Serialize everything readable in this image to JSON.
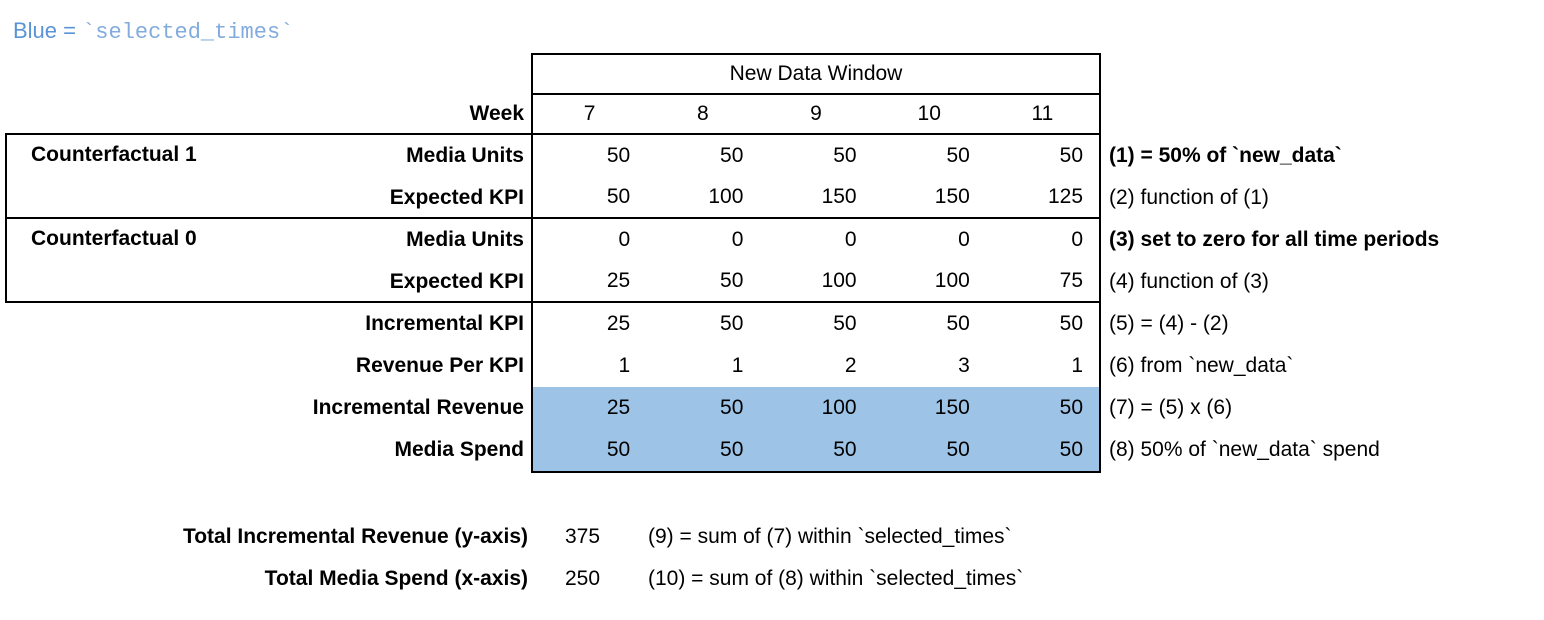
{
  "colors": {
    "highlight_blue": "#9dc3e6",
    "legend_text_blue": "#5b94d6",
    "legend_code_blue": "#82abde"
  },
  "legend": {
    "prefix": "Blue = ",
    "code": "`selected_times`"
  },
  "table": {
    "window_header": "New Data Window",
    "week_label": "Week",
    "weeks": [
      "7",
      "8",
      "9",
      "10",
      "11"
    ],
    "group1_label": "Counterfactual 1",
    "group0_label": "Counterfactual 0",
    "rows": [
      {
        "label": "Media Units",
        "values": [
          "50",
          "50",
          "50",
          "50",
          "50"
        ],
        "note": "(1) = 50% of `new_data`"
      },
      {
        "label": "Expected KPI",
        "values": [
          "50",
          "100",
          "150",
          "150",
          "125"
        ],
        "note": "(2) function of (1)"
      },
      {
        "label": "Media Units",
        "values": [
          "0",
          "0",
          "0",
          "0",
          "0"
        ],
        "note": "(3) set to zero for all time periods"
      },
      {
        "label": "Expected KPI",
        "values": [
          "25",
          "50",
          "100",
          "100",
          "75"
        ],
        "note": "(4) function of (3)"
      },
      {
        "label": "Incremental KPI",
        "values": [
          "25",
          "50",
          "50",
          "50",
          "50"
        ],
        "note": "(5) = (4) - (2)"
      },
      {
        "label": "Revenue Per KPI",
        "values": [
          "1",
          "1",
          "2",
          "3",
          "1"
        ],
        "note": "(6) from `new_data`"
      },
      {
        "label": "Incremental Revenue",
        "values": [
          "25",
          "50",
          "100",
          "150",
          "50"
        ],
        "note": "(7) = (5) x (6)"
      },
      {
        "label": "Media Spend",
        "values": [
          "50",
          "50",
          "50",
          "50",
          "50"
        ],
        "note": "(8) 50% of `new_data` spend"
      }
    ]
  },
  "totals": [
    {
      "label": "Total Incremental Revenue (y-axis)",
      "value": "375",
      "note": "(9) = sum of (7) within `selected_times`"
    },
    {
      "label": "Total Media Spend (x-axis)",
      "value": "250",
      "note": "(10) = sum of (8) within `selected_times`"
    }
  ]
}
